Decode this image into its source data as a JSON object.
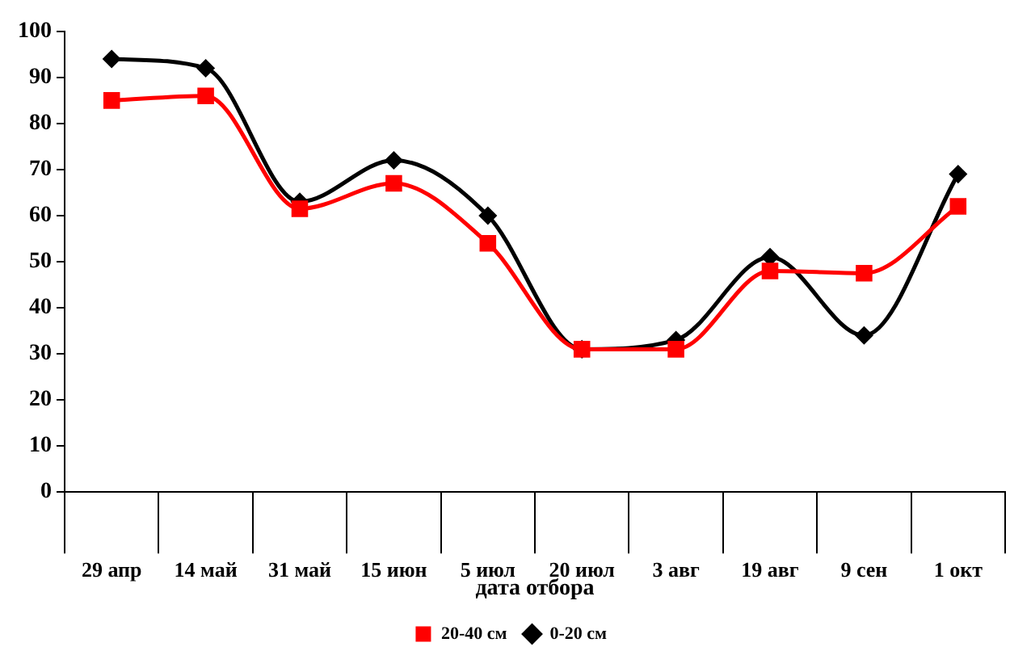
{
  "chart_data": {
    "type": "line",
    "xlabel": "дата отбора",
    "categories": [
      "29 апр",
      "14 май",
      "31 май",
      "15 июн",
      "5 июл",
      "20 июл",
      "3 авг",
      "19 авг",
      "9 сен",
      "1 окт"
    ],
    "series": [
      {
        "name": "0-20 см",
        "color": "#000000",
        "marker": "diamond",
        "values": [
          94,
          92,
          63,
          72,
          60,
          31,
          33,
          51,
          34,
          69
        ]
      },
      {
        "name": "20-40 см",
        "color": "#ff0000",
        "marker": "square",
        "values": [
          85,
          86,
          61.5,
          67,
          54,
          31,
          31,
          48,
          47.5,
          62
        ]
      }
    ],
    "ylim": [
      0,
      100
    ],
    "yticks": [
      0,
      10,
      20,
      30,
      40,
      50,
      60,
      70,
      80,
      90,
      100
    ],
    "grid": false,
    "legend": "bottom"
  }
}
